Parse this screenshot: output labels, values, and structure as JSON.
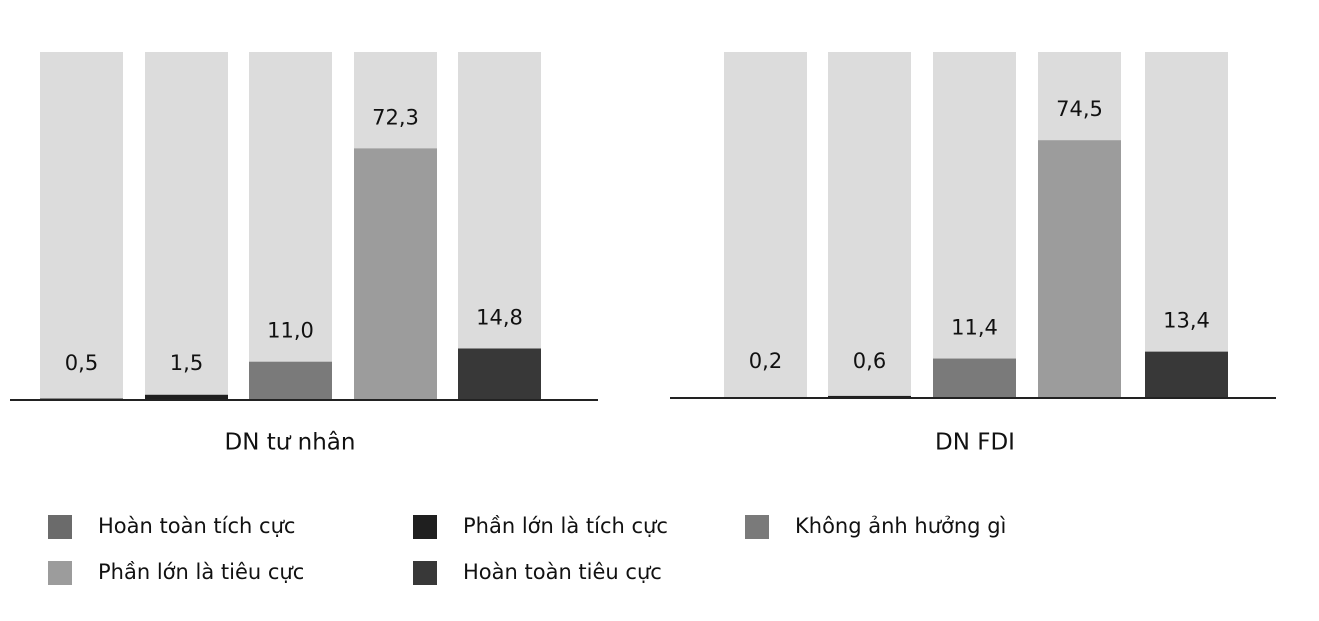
{
  "legend": {
    "items": [
      {
        "name": "Hoàn toàn tích cực",
        "color": "#6b6b6b"
      },
      {
        "name": "Phần lớn là tích cực",
        "color": "#1f1f1f"
      },
      {
        "name": "Không ảnh hưởng gì",
        "color": "#7a7a7a"
      },
      {
        "name": "Phần lớn là tiêu cực",
        "color": "#9c9c9c"
      },
      {
        "name": "Hoàn toàn tiêu cực",
        "color": "#383838"
      }
    ]
  },
  "chart_data": [
    {
      "type": "bar",
      "title": "DN tư nhân",
      "values": [
        0.5,
        1.5,
        11.0,
        72.3,
        14.8
      ],
      "value_labels": [
        "0,5",
        "1,5",
        "11,0",
        "72,3",
        "14,8"
      ],
      "ylim": [
        0,
        100
      ],
      "background": "#dcdcdc"
    },
    {
      "type": "bar",
      "title": "DN FDI",
      "values": [
        0.2,
        0.6,
        11.4,
        74.5,
        13.4
      ],
      "value_labels": [
        "0,2",
        "0,6",
        "11,4",
        "74,5",
        "13,4"
      ],
      "ylim": [
        0,
        100
      ],
      "background": "#dcdcdc"
    }
  ]
}
